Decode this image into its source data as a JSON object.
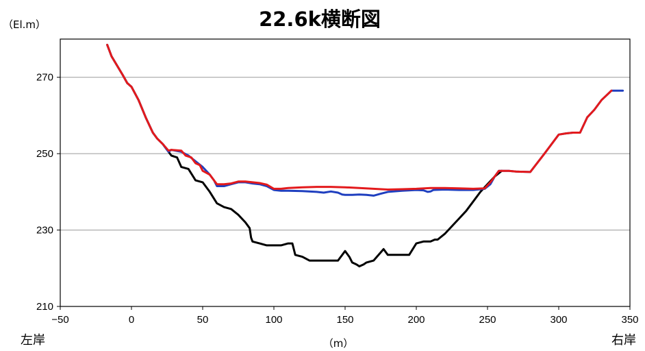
{
  "chart_data": {
    "type": "line",
    "title": "22.6k横断図",
    "y_unit_label": "（El.m）",
    "x_unit_label": "（m）",
    "left_bank_label": "左岸",
    "right_bank_label": "右岸",
    "xlim": [
      -50,
      350
    ],
    "ylim": [
      210,
      280
    ],
    "x_ticks": [
      -50,
      0,
      50,
      100,
      150,
      200,
      250,
      300,
      350
    ],
    "x_tick_labels": [
      "−50",
      "0",
      "50",
      "100",
      "150",
      "200",
      "250",
      "300",
      "350"
    ],
    "y_ticks": [
      210,
      230,
      250,
      270
    ],
    "y_tick_labels": [
      "210",
      "230",
      "250",
      "270"
    ],
    "grid": "horizontal",
    "series": [
      {
        "color": "#000000",
        "points": [
          [
            -17,
            278.5
          ],
          [
            -14,
            275.5
          ],
          [
            -10,
            273
          ],
          [
            -6,
            270.5
          ],
          [
            -3,
            268.5
          ],
          [
            0,
            267.5
          ],
          [
            5,
            264
          ],
          [
            10,
            259.5
          ],
          [
            15,
            255.5
          ],
          [
            18,
            254
          ],
          [
            22,
            252.5
          ],
          [
            26,
            250.5
          ],
          [
            28,
            249.5
          ],
          [
            32,
            249
          ],
          [
            35,
            246.5
          ],
          [
            40,
            246
          ],
          [
            45,
            243
          ],
          [
            50,
            242.5
          ],
          [
            55,
            240
          ],
          [
            60,
            237
          ],
          [
            65,
            236
          ],
          [
            70,
            235.5
          ],
          [
            75,
            234
          ],
          [
            80,
            232
          ],
          [
            83,
            230.5
          ],
          [
            84,
            228
          ],
          [
            85,
            227
          ],
          [
            90,
            226.5
          ],
          [
            95,
            226
          ],
          [
            100,
            226
          ],
          [
            105,
            226
          ],
          [
            110,
            226.5
          ],
          [
            113,
            226.5
          ],
          [
            115,
            223.5
          ],
          [
            120,
            223
          ],
          [
            125,
            222
          ],
          [
            130,
            222
          ],
          [
            135,
            222
          ],
          [
            140,
            222
          ],
          [
            145,
            222
          ],
          [
            150,
            224.5
          ],
          [
            153,
            223
          ],
          [
            155,
            221.5
          ],
          [
            158,
            221
          ],
          [
            160,
            220.5
          ],
          [
            163,
            221
          ],
          [
            165,
            221.5
          ],
          [
            170,
            222
          ],
          [
            177,
            225
          ],
          [
            180,
            223.5
          ],
          [
            185,
            223.5
          ],
          [
            190,
            223.5
          ],
          [
            195,
            223.5
          ],
          [
            200,
            226.5
          ],
          [
            205,
            227
          ],
          [
            210,
            227
          ],
          [
            213,
            227.5
          ],
          [
            215,
            227.5
          ],
          [
            220,
            229
          ],
          [
            225,
            231
          ],
          [
            230,
            233
          ],
          [
            235,
            235
          ],
          [
            240,
            237.5
          ],
          [
            245,
            240
          ],
          [
            250,
            242
          ],
          [
            255,
            244
          ],
          [
            260,
            245.5
          ]
        ]
      },
      {
        "color": "#1f3fbf",
        "points": [
          [
            -17,
            278.5
          ],
          [
            -14,
            275.5
          ],
          [
            -10,
            273
          ],
          [
            -6,
            270.5
          ],
          [
            -3,
            268.5
          ],
          [
            0,
            267.5
          ],
          [
            5,
            264
          ],
          [
            10,
            259.5
          ],
          [
            15,
            255.5
          ],
          [
            18,
            254
          ],
          [
            22,
            252.5
          ],
          [
            26,
            250.5
          ],
          [
            28,
            251
          ],
          [
            35,
            250.5
          ],
          [
            40,
            249.5
          ],
          [
            45,
            248
          ],
          [
            50,
            246.5
          ],
          [
            55,
            244.5
          ],
          [
            58,
            243
          ],
          [
            60,
            241.5
          ],
          [
            65,
            241.5
          ],
          [
            70,
            242
          ],
          [
            75,
            242.5
          ],
          [
            80,
            242.5
          ],
          [
            85,
            242.2
          ],
          [
            90,
            242
          ],
          [
            95,
            241.5
          ],
          [
            100,
            240.5
          ],
          [
            105,
            240.3
          ],
          [
            110,
            240.3
          ],
          [
            120,
            240.2
          ],
          [
            130,
            240
          ],
          [
            135,
            239.8
          ],
          [
            140,
            240.1
          ],
          [
            145,
            239.8
          ],
          [
            148,
            239.3
          ],
          [
            150,
            239.2
          ],
          [
            155,
            239.2
          ],
          [
            160,
            239.3
          ],
          [
            165,
            239.2
          ],
          [
            170,
            239
          ],
          [
            175,
            239.5
          ],
          [
            180,
            240
          ],
          [
            190,
            240.3
          ],
          [
            200,
            240.5
          ],
          [
            205,
            240.4
          ],
          [
            208,
            240
          ],
          [
            210,
            240.1
          ],
          [
            212,
            240.5
          ],
          [
            220,
            240.6
          ],
          [
            230,
            240.5
          ],
          [
            240,
            240.5
          ],
          [
            248,
            240.8
          ],
          [
            252,
            242
          ],
          [
            255,
            244
          ],
          [
            258,
            245.5
          ],
          [
            265,
            245.5
          ],
          [
            270,
            245.3
          ],
          [
            280,
            245.2
          ],
          [
            290,
            250
          ],
          [
            300,
            255
          ],
          [
            305,
            255.3
          ],
          [
            310,
            255.5
          ],
          [
            315,
            255.5
          ],
          [
            320,
            259.5
          ],
          [
            325,
            261.5
          ],
          [
            330,
            264
          ],
          [
            337,
            266.5
          ],
          [
            345,
            266.5
          ]
        ]
      },
      {
        "color": "#e31a1c",
        "points": [
          [
            -17,
            278.5
          ],
          [
            -14,
            275.5
          ],
          [
            -10,
            273
          ],
          [
            -6,
            270.5
          ],
          [
            -3,
            268.5
          ],
          [
            0,
            267.5
          ],
          [
            5,
            264
          ],
          [
            10,
            259.5
          ],
          [
            15,
            255.5
          ],
          [
            18,
            254
          ],
          [
            22,
            252.5
          ],
          [
            26,
            250.8
          ],
          [
            28,
            251
          ],
          [
            35,
            250.8
          ],
          [
            38,
            249.5
          ],
          [
            42,
            249
          ],
          [
            45,
            247.5
          ],
          [
            48,
            247
          ],
          [
            50,
            245.5
          ],
          [
            55,
            244.5
          ],
          [
            58,
            243
          ],
          [
            60,
            242
          ],
          [
            65,
            242
          ],
          [
            70,
            242.2
          ],
          [
            75,
            242.7
          ],
          [
            80,
            242.7
          ],
          [
            90,
            242.3
          ],
          [
            95,
            241.9
          ],
          [
            100,
            240.8
          ],
          [
            105,
            240.8
          ],
          [
            110,
            241
          ],
          [
            120,
            241.2
          ],
          [
            130,
            241.3
          ],
          [
            140,
            241.3
          ],
          [
            150,
            241.2
          ],
          [
            160,
            241
          ],
          [
            170,
            240.8
          ],
          [
            180,
            240.6
          ],
          [
            190,
            240.7
          ],
          [
            200,
            240.8
          ],
          [
            210,
            241
          ],
          [
            220,
            241
          ],
          [
            230,
            240.9
          ],
          [
            240,
            240.8
          ],
          [
            248,
            240.9
          ],
          [
            252,
            242.5
          ],
          [
            255,
            244
          ],
          [
            258,
            245.5
          ],
          [
            265,
            245.5
          ],
          [
            270,
            245.3
          ],
          [
            280,
            245.2
          ],
          [
            290,
            250
          ],
          [
            300,
            255
          ],
          [
            305,
            255.3
          ],
          [
            310,
            255.5
          ],
          [
            315,
            255.5
          ],
          [
            320,
            259.5
          ],
          [
            325,
            261.5
          ],
          [
            330,
            264
          ],
          [
            337,
            266.5
          ]
        ]
      }
    ]
  }
}
